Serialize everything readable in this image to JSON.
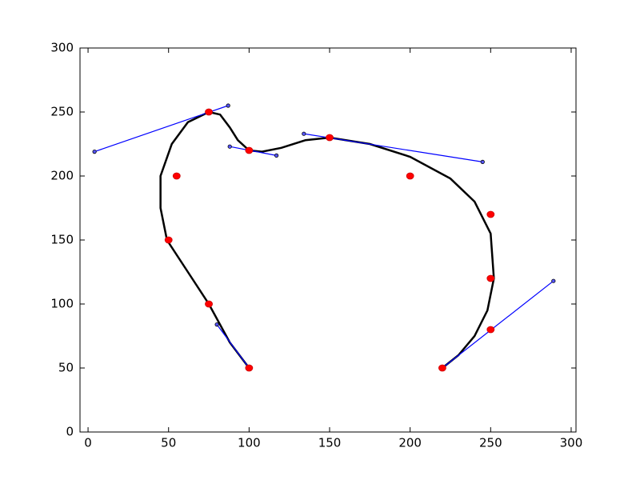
{
  "chart_data": {
    "type": "scatter",
    "xlim": [
      -5,
      303
    ],
    "ylim": [
      0,
      300
    ],
    "xticks": [
      0,
      50,
      100,
      150,
      200,
      250,
      300
    ],
    "yticks": [
      0,
      50,
      100,
      150,
      200,
      250,
      300
    ],
    "series": [
      {
        "style": "line",
        "color": "#000000",
        "x": [
          100,
          88,
          75,
          62,
          49,
          45,
          45,
          52,
          62,
          75,
          82,
          88,
          93,
          100,
          108,
          120,
          135,
          150,
          175,
          200,
          225,
          240,
          250,
          252,
          248,
          240,
          230,
          220
        ],
        "y": [
          50,
          70,
          100,
          125,
          150,
          175,
          200,
          225,
          242,
          250,
          248,
          238,
          228,
          220,
          219,
          222,
          228,
          230,
          225,
          215,
          198,
          180,
          155,
          120,
          95,
          75,
          60,
          50
        ]
      },
      {
        "style": "handles",
        "color": "#0000ff",
        "x": [
          80,
          100,
          null,
          4,
          87,
          null,
          88,
          117,
          null,
          134,
          245,
          null,
          220,
          289
        ],
        "y": [
          84,
          50,
          null,
          219,
          255,
          null,
          223,
          216,
          null,
          233,
          211,
          null,
          50,
          118
        ]
      },
      {
        "style": "points",
        "color": "#ff0000",
        "x": [
          100,
          75,
          50,
          55,
          75,
          100,
          150,
          200,
          250,
          250,
          250,
          220
        ],
        "y": [
          50,
          100,
          150,
          200,
          250,
          220,
          230,
          200,
          170,
          120,
          80,
          50
        ]
      }
    ]
  }
}
